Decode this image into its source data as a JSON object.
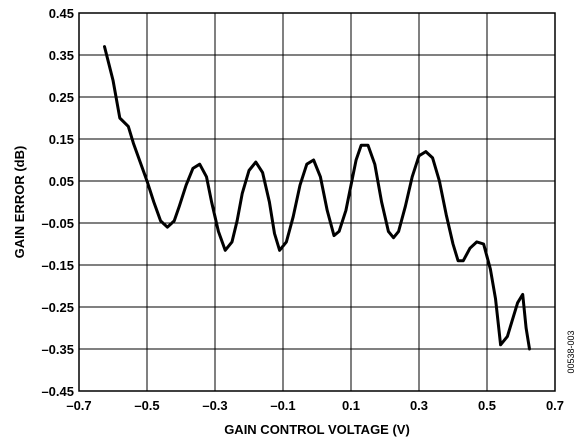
{
  "chart_data": {
    "type": "line",
    "xlabel": "GAIN CONTROL VOLTAGE (V)",
    "ylabel": "GAIN ERROR (dB)",
    "xlim": [
      -0.7,
      0.7
    ],
    "ylim": [
      -0.45,
      0.45
    ],
    "x_ticks": [
      "–0.7",
      "–0.5",
      "–0.3",
      "–0.1",
      "0.1",
      "0.3",
      "0.5",
      "0.7"
    ],
    "y_ticks": [
      "0.45",
      "0.35",
      "0.25",
      "0.15",
      "0.05",
      "–0.05",
      "–0.15",
      "–0.25",
      "–0.35",
      "–0.45"
    ],
    "grid": true,
    "series": [
      {
        "x": [
          -0.625,
          -0.6,
          -0.58,
          -0.555,
          -0.54,
          -0.52,
          -0.5,
          -0.48,
          -0.46,
          -0.44,
          -0.42,
          -0.405,
          -0.385,
          -0.365,
          -0.345,
          -0.325,
          -0.31,
          -0.29,
          -0.27,
          -0.25,
          -0.235,
          -0.22,
          -0.2,
          -0.18,
          -0.16,
          -0.14,
          -0.125,
          -0.11,
          -0.09,
          -0.07,
          -0.05,
          -0.03,
          -0.01,
          0.01,
          0.03,
          0.05,
          0.065,
          0.085,
          0.1,
          0.115,
          0.13,
          0.15,
          0.17,
          0.19,
          0.21,
          0.225,
          0.24,
          0.26,
          0.28,
          0.3,
          0.32,
          0.34,
          0.36,
          0.38,
          0.4,
          0.415,
          0.43,
          0.45,
          0.47,
          0.49,
          0.51,
          0.525,
          0.54,
          0.56,
          0.575,
          0.59,
          0.605,
          0.615,
          0.625
        ],
        "y": [
          0.37,
          0.29,
          0.2,
          0.18,
          0.14,
          0.095,
          0.05,
          0.0,
          -0.045,
          -0.06,
          -0.045,
          -0.01,
          0.04,
          0.08,
          0.09,
          0.06,
          0.0,
          -0.07,
          -0.115,
          -0.095,
          -0.045,
          0.02,
          0.075,
          0.095,
          0.07,
          0.0,
          -0.075,
          -0.115,
          -0.095,
          -0.035,
          0.04,
          0.09,
          0.1,
          0.06,
          -0.02,
          -0.08,
          -0.07,
          -0.02,
          0.04,
          0.1,
          0.135,
          0.135,
          0.09,
          0.0,
          -0.07,
          -0.085,
          -0.07,
          -0.01,
          0.06,
          0.11,
          0.12,
          0.105,
          0.05,
          -0.03,
          -0.1,
          -0.14,
          -0.14,
          -0.11,
          -0.095,
          -0.1,
          -0.16,
          -0.23,
          -0.34,
          -0.32,
          -0.28,
          -0.24,
          -0.22,
          -0.3,
          -0.35
        ]
      }
    ]
  },
  "figure_code": "00538-003"
}
